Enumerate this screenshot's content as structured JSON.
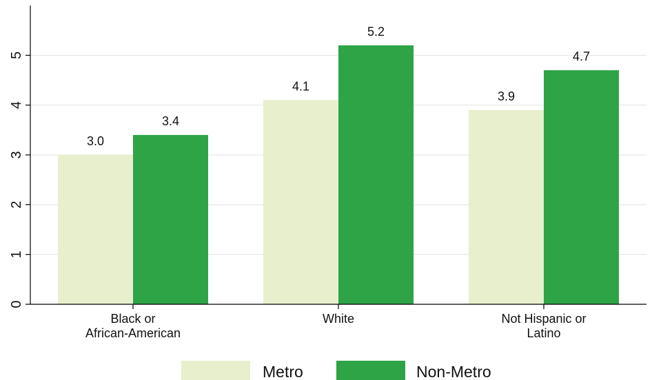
{
  "chart_data": {
    "type": "bar",
    "categories": [
      [
        "Black or",
        "African-American"
      ],
      [
        "White"
      ],
      [
        "Not Hispanic or",
        "Latino"
      ]
    ],
    "series": [
      {
        "name": "Metro",
        "values": [
          3.0,
          4.1,
          3.9
        ],
        "labels": [
          "3.0",
          "4.1",
          "3.9"
        ],
        "color": "#e7efcd"
      },
      {
        "name": "Non-Metro",
        "values": [
          3.4,
          5.2,
          4.7
        ],
        "labels": [
          "3.4",
          "5.2",
          "4.7"
        ],
        "color": "#2ea447"
      }
    ],
    "ylim": [
      0,
      6
    ],
    "yticks": [
      0,
      1,
      2,
      3,
      4,
      5
    ],
    "grid": true,
    "legend_position": "bottom"
  }
}
